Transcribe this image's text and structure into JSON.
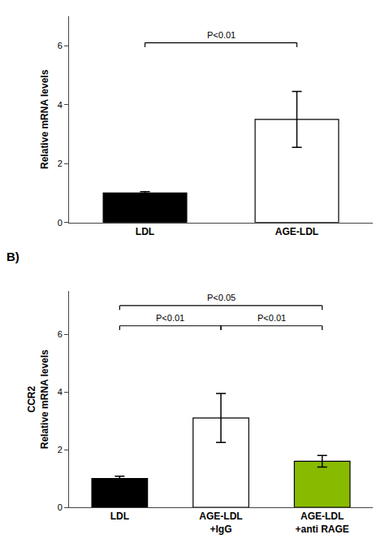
{
  "chart_data": [
    {
      "type": "bar",
      "categories": [
        "LDL",
        "AGE-LDL"
      ],
      "values": [
        1.0,
        3.5
      ],
      "errors": [
        0.05,
        0.95
      ],
      "colors": [
        "#000000",
        "#ffffff"
      ],
      "ylabel": "Relative mRNA levels",
      "ylim": [
        0,
        7
      ],
      "yticks": [
        0,
        2,
        4,
        6
      ],
      "grid": false,
      "annotations": [
        {
          "text": "P<0.01",
          "from": "LDL",
          "to": "AGE-LDL",
          "y": 6.1,
          "drop": 0.15
        }
      ]
    },
    {
      "type": "bar",
      "title": "B)",
      "categories": [
        "LDL",
        "AGE-LDL\n+IgG",
        "AGE-LDL\n+anti RAGE"
      ],
      "values": [
        1.0,
        3.1,
        1.6
      ],
      "errors": [
        0.08,
        0.85,
        0.2
      ],
      "colors": [
        "#000000",
        "#ffffff",
        "#88bb00"
      ],
      "ylabel": "CCR2\nRelative mRNA levels",
      "ylim": [
        0,
        7.5
      ],
      "yticks": [
        0,
        2,
        4,
        6
      ],
      "grid": false,
      "annotations": [
        {
          "text": "P<0.05",
          "from": "LDL",
          "to": "AGE-LDL\n+anti RAGE",
          "y": 7.0,
          "drop": 0.15
        },
        {
          "text": "P<0.01",
          "from": "LDL",
          "to": "AGE-LDL\n+IgG",
          "y": 6.3,
          "drop": 0.15
        },
        {
          "text": "P<0.01",
          "from": "AGE-LDL\n+IgG",
          "to": "AGE-LDL\n+anti RAGE",
          "y": 6.3,
          "drop": 0.15
        }
      ]
    }
  ]
}
